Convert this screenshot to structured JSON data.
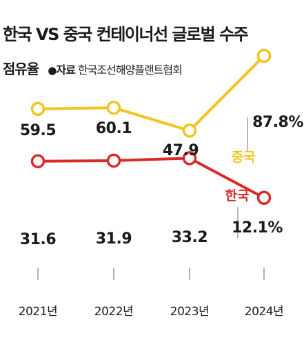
{
  "header": {
    "title": "한국 VS 중국 컨테이너선 글로벌 수주",
    "subtitle": "점유율",
    "source_bullet": "●",
    "source_label": "자료",
    "source_name": "한국조선해양플랜트협회"
  },
  "colors": {
    "china": "#f2c51e",
    "korea": "#d92b26",
    "text": "#1a1a1a",
    "tick": "#888888"
  },
  "chart_data": {
    "type": "line",
    "title": "한국 VS 중국 컨테이너선 글로벌 수주 점유율",
    "categories": [
      "2021년",
      "2022년",
      "2023년",
      "2024년"
    ],
    "unit": "%",
    "series": [
      {
        "name": "중국",
        "values": [
          59.5,
          60.1,
          47.9,
          87.8
        ],
        "labels": [
          "59.5",
          "60.1",
          "47.9",
          "87.8%"
        ]
      },
      {
        "name": "한국",
        "values": [
          31.6,
          31.9,
          33.2,
          12.1
        ],
        "labels": [
          "31.6",
          "31.9",
          "33.2",
          "12.1%"
        ]
      }
    ],
    "grid": false,
    "legend": "series names printed next to each line's last segment"
  }
}
